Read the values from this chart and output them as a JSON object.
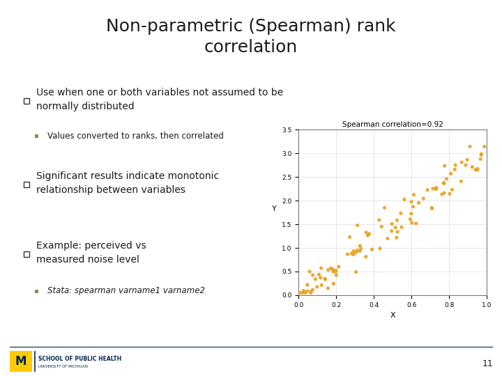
{
  "title_line1": "Non-parametric (Spearman) rank",
  "title_line2": "correlation",
  "title_fontsize": 18,
  "title_color": "#1a1a1a",
  "bg_color": "#ffffff",
  "bullet1_text": "Use when one or both variables not assumed to be\nnormally distributed",
  "sub1_text": "Values converted to ranks, then correlated",
  "bullet2_text": "Significant results indicate monotonic\nrelationship between variables",
  "bullet3_text": "Example: perceived vs\nmeasured noise level",
  "sub3_text": "Stata: spearman varname1 varname2",
  "bullet_color": "#1a1a1a",
  "sub_bullet_color": "#8B8B50",
  "body_fontsize": 10,
  "sub_fontsize": 8.5,
  "scatter_title": "Spearman correlation=0.92",
  "scatter_color": "#E8A020",
  "scatter_xlabel": "X",
  "scatter_ylabel": "Y",
  "scatter_xlim": [
    0.0,
    1.0
  ],
  "scatter_ylim": [
    0.0,
    3.5
  ],
  "footer_text1": "SCHOOL OF PUBLIC HEALTH",
  "footer_text2": "UNIVERSITY OF MICHIGAN",
  "page_number": "11",
  "footer_color_m": "#FFCB05",
  "footer_color_text": "#00274C",
  "accent_color": "#00274C"
}
